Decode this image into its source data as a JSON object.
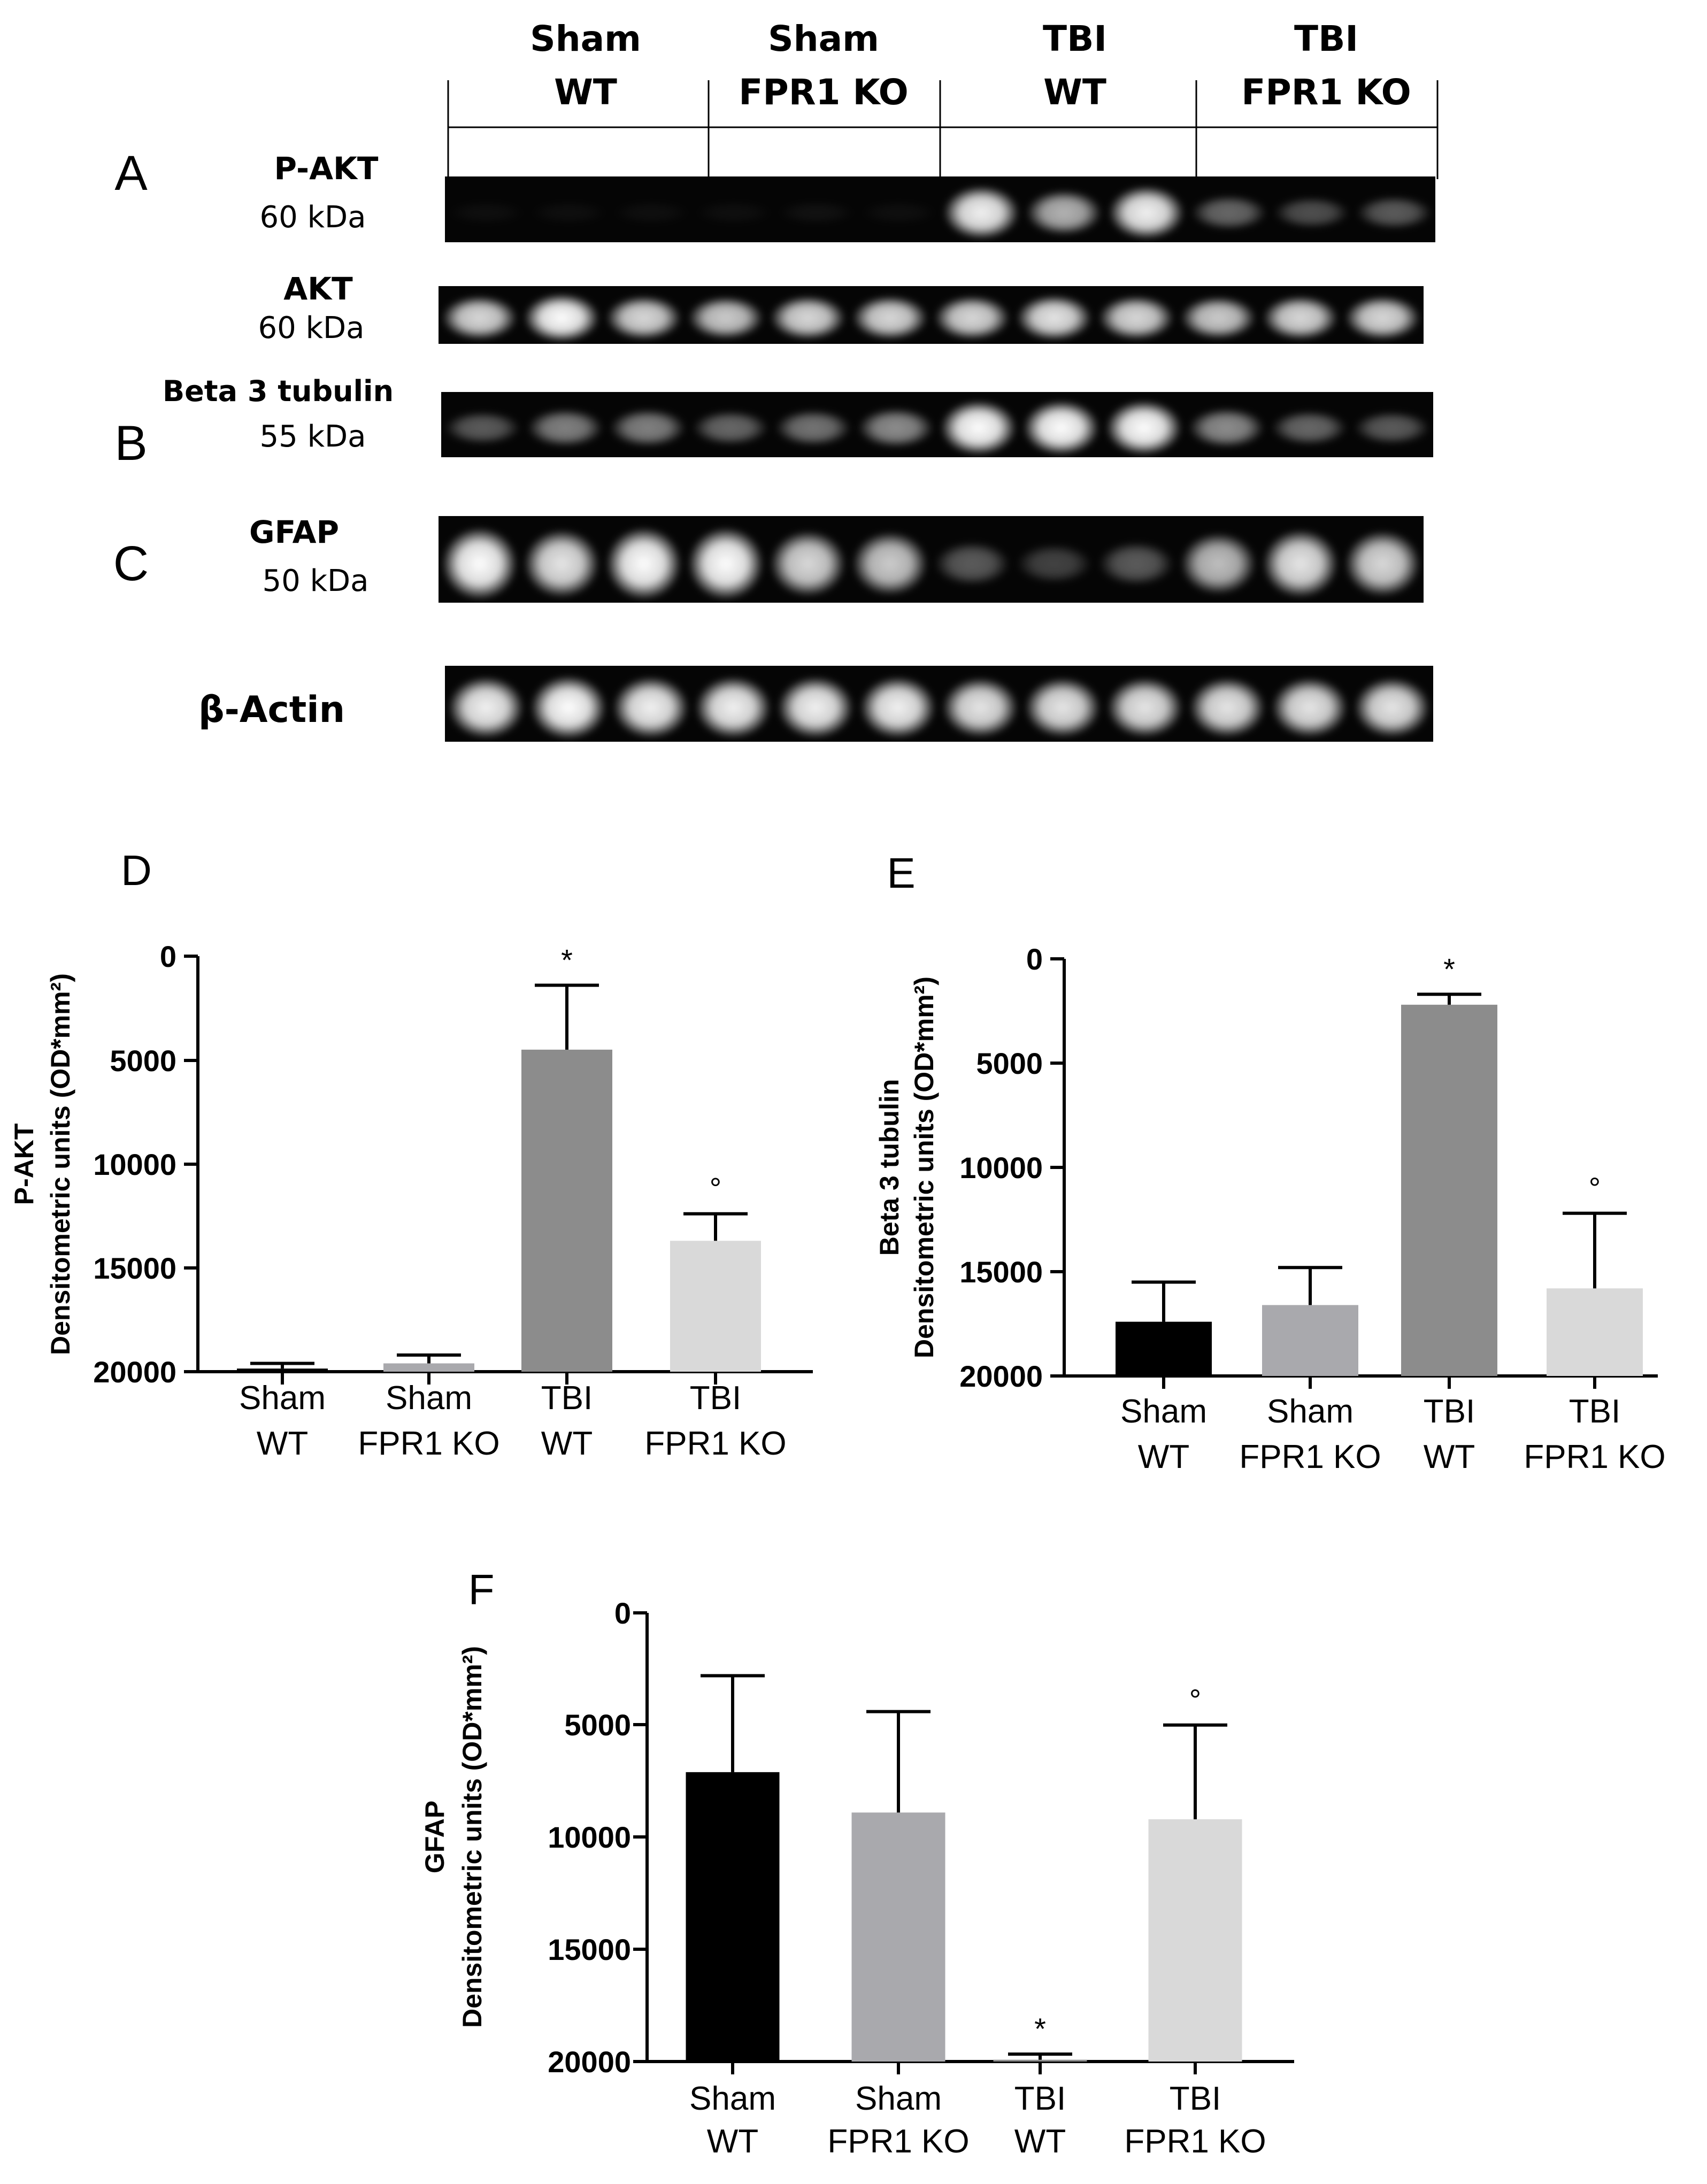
{
  "blot": {
    "panel_letters": [
      "A",
      "B",
      "C"
    ],
    "groups": [
      {
        "line1": "Sham",
        "line2": "WT"
      },
      {
        "line1": "Sham",
        "line2": "FPR1 KO"
      },
      {
        "line1": "TBI",
        "line2": "WT"
      },
      {
        "line1": "TBI",
        "line2": "FPR1 KO"
      }
    ],
    "rows": [
      {
        "label": "P-AKT",
        "kda": "60 kDa",
        "lanes": [
          0.03,
          0.03,
          0.04,
          0.04,
          0.05,
          0.04,
          0.95,
          0.7,
          0.95,
          0.4,
          0.3,
          0.35
        ]
      },
      {
        "label": "AKT",
        "kda": "60 kDa",
        "lanes": [
          0.85,
          1.0,
          0.85,
          0.8,
          0.85,
          0.85,
          0.85,
          0.9,
          0.85,
          0.8,
          0.85,
          0.85
        ]
      },
      {
        "label": "Beta 3 tubulin",
        "kda": "55 kDa",
        "lanes": [
          0.35,
          0.5,
          0.5,
          0.4,
          0.45,
          0.55,
          1.0,
          1.0,
          1.0,
          0.55,
          0.4,
          0.35
        ]
      },
      {
        "label": "GFAP",
        "kda": "50 kDa",
        "lanes": [
          1.0,
          0.9,
          1.0,
          1.0,
          0.85,
          0.8,
          0.35,
          0.25,
          0.35,
          0.75,
          0.9,
          0.85
        ]
      },
      {
        "label": "β-Actin",
        "kda": "",
        "lanes": [
          0.95,
          1.0,
          0.95,
          0.95,
          0.95,
          0.95,
          0.9,
          0.9,
          0.9,
          0.9,
          0.9,
          0.9
        ]
      }
    ]
  },
  "chart_data": [
    {
      "panel": "D",
      "type": "bar",
      "ylabel_line1": "P-AKT",
      "ylabel_line2": "Densitometric units (OD*mm²)",
      "ylim": [
        0,
        20000
      ],
      "yticks": [
        "0",
        "5000",
        "10000",
        "15000",
        "20000"
      ],
      "categories": [
        [
          "Sham",
          "WT"
        ],
        [
          "Sham",
          "FPR1 KO"
        ],
        [
          "TBI",
          "WT"
        ],
        [
          "TBI",
          "FPR1 KO"
        ]
      ],
      "values": [
        150,
        400,
        15500,
        6300
      ],
      "errors": [
        250,
        400,
        3100,
        1300
      ],
      "marks": [
        "",
        "",
        "*",
        "°"
      ],
      "colors": [
        "#000000",
        "#a9a9ad",
        "#8c8c8c",
        "#d9d9d9"
      ]
    },
    {
      "panel": "E",
      "type": "bar",
      "ylabel_line1": "Beta 3 tubulin",
      "ylabel_line2": "Densitometric units (OD*mm²)",
      "ylim": [
        0,
        20000
      ],
      "yticks": [
        "0",
        "5000",
        "10000",
        "15000",
        "20000"
      ],
      "categories": [
        [
          "Sham",
          "WT"
        ],
        [
          "Sham",
          "FPR1 KO"
        ],
        [
          "TBI",
          "WT"
        ],
        [
          "TBI",
          "FPR1 KO"
        ]
      ],
      "values": [
        2600,
        3400,
        17800,
        4200
      ],
      "errors": [
        1900,
        1800,
        500,
        3600
      ],
      "marks": [
        "",
        "",
        "*",
        "°"
      ],
      "colors": [
        "#000000",
        "#a9a9ad",
        "#8c8c8c",
        "#d9d9d9"
      ]
    },
    {
      "panel": "F",
      "type": "bar",
      "ylabel_line1": "GFAP",
      "ylabel_line2": "Densitometric units (OD*mm²)",
      "ylim": [
        0,
        20000
      ],
      "yticks": [
        "0",
        "5000",
        "10000",
        "15000",
        "20000"
      ],
      "categories": [
        [
          "Sham",
          "WT"
        ],
        [
          "Sham",
          "FPR1 KO"
        ],
        [
          "TBI",
          "WT"
        ],
        [
          "TBI",
          "FPR1 KO"
        ]
      ],
      "values": [
        12900,
        11100,
        80,
        10800
      ],
      "errors": [
        4300,
        4500,
        250,
        4200
      ],
      "marks": [
        "",
        "",
        "*",
        "°"
      ],
      "colors": [
        "#000000",
        "#a9a9ad",
        "#8c8c8c",
        "#d9d9d9"
      ]
    }
  ]
}
